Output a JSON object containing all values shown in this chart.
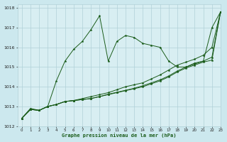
{
  "title": "Graphe pression niveau de la mer (hPa)",
  "background_color": "#cce8ee",
  "plot_bg_color": "#d8eef2",
  "grid_color": "#b0d0d8",
  "line_color": "#1a5c1a",
  "marker": "*",
  "xlim": [
    -0.5,
    23
  ],
  "ylim": [
    1012,
    1018.2
  ],
  "xticks": [
    0,
    1,
    2,
    3,
    4,
    5,
    6,
    7,
    8,
    9,
    10,
    11,
    12,
    13,
    14,
    15,
    16,
    17,
    18,
    19,
    20,
    21,
    22,
    23
  ],
  "yticks": [
    1012,
    1013,
    1014,
    1015,
    1016,
    1017,
    1018
  ],
  "series": [
    [
      1012.4,
      1012.9,
      1012.8,
      1013.0,
      1014.3,
      1015.3,
      1015.9,
      1016.3,
      1016.9,
      1017.6,
      1015.3,
      1016.3,
      1016.6,
      1016.5,
      1016.2,
      1016.1,
      1016.0,
      1015.3,
      1015.0,
      1015.0,
      1015.2,
      1015.3,
      1017.0,
      1017.8
    ],
    [
      1012.4,
      1012.85,
      1012.8,
      1013.0,
      1013.1,
      1013.25,
      1013.3,
      1013.35,
      1013.4,
      1013.5,
      1013.6,
      1013.7,
      1013.8,
      1013.9,
      1014.0,
      1014.15,
      1014.3,
      1014.5,
      1014.75,
      1014.95,
      1015.1,
      1015.25,
      1015.35,
      1017.8
    ],
    [
      1012.4,
      1012.85,
      1012.8,
      1013.0,
      1013.1,
      1013.25,
      1013.3,
      1013.35,
      1013.4,
      1013.5,
      1013.62,
      1013.72,
      1013.82,
      1013.92,
      1014.05,
      1014.2,
      1014.35,
      1014.55,
      1014.8,
      1015.0,
      1015.15,
      1015.3,
      1015.5,
      1017.8
    ],
    [
      1012.4,
      1012.85,
      1012.8,
      1013.0,
      1013.1,
      1013.25,
      1013.3,
      1013.4,
      1013.5,
      1013.6,
      1013.7,
      1013.85,
      1014.0,
      1014.1,
      1014.2,
      1014.4,
      1014.6,
      1014.85,
      1015.1,
      1015.25,
      1015.4,
      1015.6,
      1016.0,
      1017.8
    ]
  ]
}
